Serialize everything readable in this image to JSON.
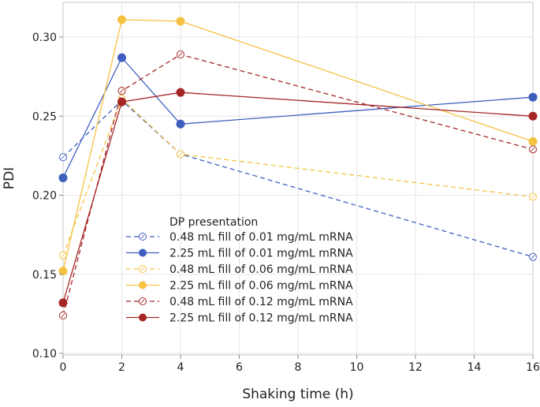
{
  "chart_data": {
    "type": "line",
    "title": "",
    "xlabel": "Shaking time (h)",
    "ylabel": "PDI",
    "xlim": [
      0,
      16
    ],
    "ylim": [
      0.1,
      0.32
    ],
    "xticks": [
      0,
      2,
      4,
      6,
      8,
      10,
      12,
      14,
      16
    ],
    "yticks": [
      0.1,
      0.15,
      0.2,
      0.25,
      0.3
    ],
    "xtick_labels": [
      "0",
      "2",
      "4",
      "6",
      "8",
      "10",
      "12",
      "14",
      "16"
    ],
    "ytick_labels": [
      "0.10",
      "0.15",
      "0.20",
      "0.25",
      "0.30"
    ],
    "grid": true,
    "legend_title": "DP presentation",
    "legend_position": "lower-center",
    "x": [
      0,
      2,
      4,
      16
    ],
    "series": [
      {
        "name": "0.48 mL fill of 0.01 mg/mL mRNA",
        "values": [
          0.224,
          0.26,
          0.226,
          0.161
        ],
        "color": "#3F5FBF",
        "dashed": true,
        "filled": false
      },
      {
        "name": "2.25 mL fill of 0.01 mg/mL mRNA",
        "values": [
          0.211,
          0.287,
          0.245,
          0.262
        ],
        "color": "#3F5FBF",
        "dashed": false,
        "filled": true
      },
      {
        "name": "0.48 mL fill of 0.06 mg/mL mRNA",
        "values": [
          0.162,
          0.261,
          0.226,
          0.199
        ],
        "color": "#F6C242",
        "dashed": true,
        "filled": false
      },
      {
        "name": "2.25 mL fill of 0.06 mg/mL mRNA",
        "values": [
          0.152,
          0.311,
          0.31,
          0.234
        ],
        "color": "#F6C242",
        "dashed": false,
        "filled": true
      },
      {
        "name": "0.48 mL fill of 0.12 mg/mL mRNA",
        "values": [
          0.124,
          0.266,
          0.289,
          0.229
        ],
        "color": "#A52626",
        "dashed": true,
        "filled": false
      },
      {
        "name": "2.25 mL fill of 0.12 mg/mL mRNA",
        "values": [
          0.132,
          0.259,
          0.265,
          0.25
        ],
        "color": "#A52626",
        "dashed": false,
        "filled": true
      }
    ]
  }
}
